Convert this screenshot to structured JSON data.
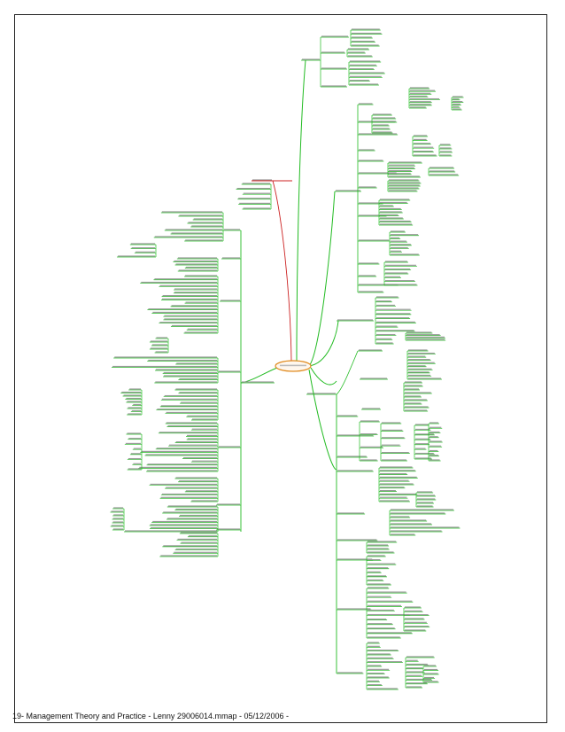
{
  "document": {
    "footer_text": "19- Management Theory and Practice - Lenny 29006014.mmap - 05/12/2006 -"
  },
  "colors": {
    "branch": "#22bb22",
    "accent_branch": "#cc2222",
    "root_outline": "#e08a1e",
    "frame": "#222222"
  }
}
